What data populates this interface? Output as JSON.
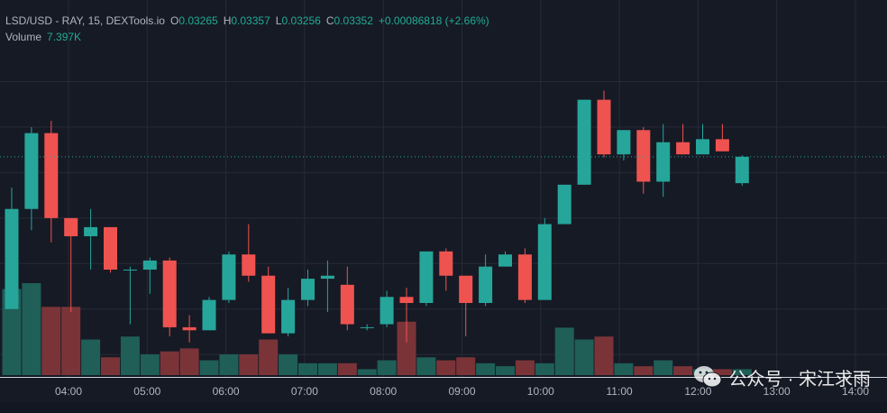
{
  "legend": {
    "symbol": "LSD/USD - RAY, 15, DEXTools.io",
    "o_label": "O",
    "o_value": "0.03265",
    "h_label": "H",
    "h_value": "0.03357",
    "l_label": "L",
    "l_value": "0.03256",
    "c_label": "C",
    "c_value": "0.03352",
    "change": "+0.00086818 (+2.66%)",
    "volume_label": "Volume",
    "volume_value": "7.397K"
  },
  "watermark": {
    "text": "公众号 · 宋江求雨"
  },
  "colors": {
    "up": "#26a69a",
    "down": "#ef5350",
    "vol_up": "#1f5f57",
    "vol_down": "#7a3438",
    "grid": "#262b38",
    "price_line": "#26a69a"
  },
  "chart_data": {
    "type": "candlestick",
    "x_ticks": [
      "04:00",
      "05:00",
      "06:00",
      "07:00",
      "08:00",
      "09:00",
      "10:00",
      "11:00",
      "12:00",
      "13:00",
      "14:00"
    ],
    "y_range": [
      0.0265,
      0.0375
    ],
    "last_close": 0.03352,
    "candles": [
      {
        "o": 0.0285,
        "h": 0.0325,
        "l": 0.0285,
        "c": 0.0318,
        "v": 2.9
      },
      {
        "o": 0.0318,
        "h": 0.0345,
        "l": 0.0311,
        "c": 0.0343,
        "v": 3.1
      },
      {
        "o": 0.0343,
        "h": 0.0347,
        "l": 0.0307,
        "c": 0.0315,
        "v": 2.3
      },
      {
        "o": 0.0315,
        "h": 0.0314,
        "l": 0.0284,
        "c": 0.0309,
        "v": 2.3
      },
      {
        "o": 0.0309,
        "h": 0.0318,
        "l": 0.0298,
        "c": 0.0312,
        "v": 1.2
      },
      {
        "o": 0.0312,
        "h": 0.0312,
        "l": 0.0297,
        "c": 0.0298,
        "v": 0.6
      },
      {
        "o": 0.0298,
        "h": 0.0299,
        "l": 0.028,
        "c": 0.0298,
        "v": 1.3
      },
      {
        "o": 0.0298,
        "h": 0.0302,
        "l": 0.029,
        "c": 0.0301,
        "v": 0.7
      },
      {
        "o": 0.0301,
        "h": 0.0302,
        "l": 0.0276,
        "c": 0.0279,
        "v": 0.8
      },
      {
        "o": 0.0279,
        "h": 0.0283,
        "l": 0.0274,
        "c": 0.0278,
        "v": 0.9
      },
      {
        "o": 0.0278,
        "h": 0.0289,
        "l": 0.0278,
        "c": 0.0288,
        "v": 0.5
      },
      {
        "o": 0.0288,
        "h": 0.0304,
        "l": 0.0287,
        "c": 0.0303,
        "v": 0.7
      },
      {
        "o": 0.0303,
        "h": 0.0313,
        "l": 0.0294,
        "c": 0.0296,
        "v": 0.7
      },
      {
        "o": 0.0296,
        "h": 0.0299,
        "l": 0.0277,
        "c": 0.0277,
        "v": 1.2
      },
      {
        "o": 0.0277,
        "h": 0.0292,
        "l": 0.0276,
        "c": 0.0288,
        "v": 0.7
      },
      {
        "o": 0.0288,
        "h": 0.0298,
        "l": 0.0286,
        "c": 0.0295,
        "v": 0.4
      },
      {
        "o": 0.0295,
        "h": 0.0301,
        "l": 0.0284,
        "c": 0.0296,
        "v": 0.4
      },
      {
        "o": 0.0293,
        "h": 0.0299,
        "l": 0.0278,
        "c": 0.028,
        "v": 0.4
      },
      {
        "o": 0.0279,
        "h": 0.028,
        "l": 0.0278,
        "c": 0.0279,
        "v": 0.2
      },
      {
        "o": 0.028,
        "h": 0.0291,
        "l": 0.0279,
        "c": 0.0289,
        "v": 0.5
      },
      {
        "o": 0.0289,
        "h": 0.0292,
        "l": 0.0274,
        "c": 0.0287,
        "v": 1.8
      },
      {
        "o": 0.0287,
        "h": 0.0304,
        "l": 0.0286,
        "c": 0.0304,
        "v": 0.6
      },
      {
        "o": 0.0304,
        "h": 0.0305,
        "l": 0.0291,
        "c": 0.0296,
        "v": 0.5
      },
      {
        "o": 0.0296,
        "h": 0.0296,
        "l": 0.0276,
        "c": 0.0287,
        "v": 0.6
      },
      {
        "o": 0.0287,
        "h": 0.0303,
        "l": 0.0286,
        "c": 0.0299,
        "v": 0.4
      },
      {
        "o": 0.0299,
        "h": 0.0304,
        "l": 0.0299,
        "c": 0.0303,
        "v": 0.3
      },
      {
        "o": 0.0303,
        "h": 0.0305,
        "l": 0.0287,
        "c": 0.0288,
        "v": 0.5
      },
      {
        "o": 0.0288,
        "h": 0.0315,
        "l": 0.0288,
        "c": 0.0313,
        "v": 0.4
      },
      {
        "o": 0.0313,
        "h": 0.0326,
        "l": 0.0313,
        "c": 0.0326,
        "v": 1.6
      },
      {
        "o": 0.0326,
        "h": 0.0354,
        "l": 0.0326,
        "c": 0.0354,
        "v": 1.2
      },
      {
        "o": 0.0354,
        "h": 0.0357,
        "l": 0.0335,
        "c": 0.0336,
        "v": 1.3
      },
      {
        "o": 0.0336,
        "h": 0.0344,
        "l": 0.0334,
        "c": 0.0344,
        "v": 0.4
      },
      {
        "o": 0.0344,
        "h": 0.0345,
        "l": 0.0323,
        "c": 0.0327,
        "v": 0.3
      },
      {
        "o": 0.0327,
        "h": 0.0346,
        "l": 0.0322,
        "c": 0.034,
        "v": 0.5
      },
      {
        "o": 0.034,
        "h": 0.0346,
        "l": 0.0336,
        "c": 0.0336,
        "v": 0.3
      },
      {
        "o": 0.0336,
        "h": 0.0346,
        "l": 0.0336,
        "c": 0.0341,
        "v": 0.2
      },
      {
        "o": 0.0341,
        "h": 0.0346,
        "l": 0.0337,
        "c": 0.0337,
        "v": 0.2
      },
      {
        "o": 0.03265,
        "h": 0.03357,
        "l": 0.03256,
        "c": 0.03352,
        "v": 0.2
      }
    ]
  }
}
